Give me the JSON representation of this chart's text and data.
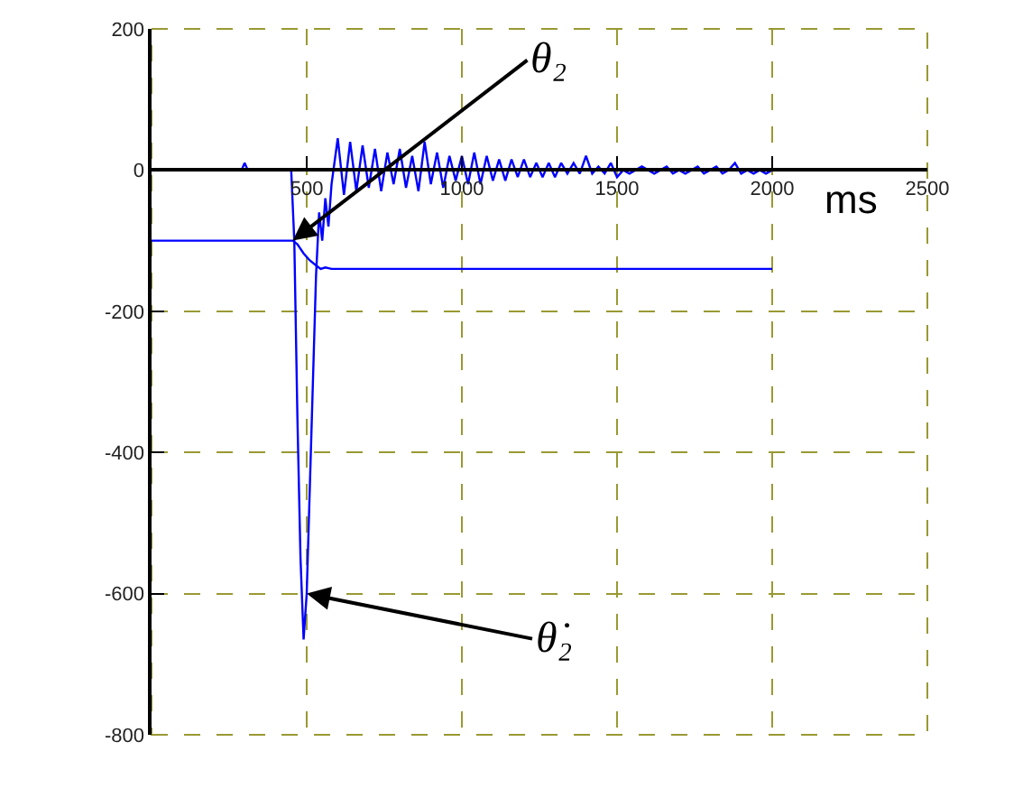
{
  "chart_data": {
    "type": "line",
    "xlabel": "ms",
    "xlim": [
      0,
      2500
    ],
    "xticks": [
      500,
      1000,
      1500,
      2000,
      2500
    ],
    "ylim": [
      -800,
      200
    ],
    "yticks": [
      -800,
      -600,
      -400,
      -200,
      0,
      200
    ],
    "grid": true,
    "marker": "none",
    "line_style": "solid",
    "series": [
      {
        "color": "#0000ff",
        "x": [
          0,
          455,
          470,
          490,
          510,
          530,
          545,
          560,
          580,
          2000
        ],
        "values": [
          -100,
          -100,
          -105,
          -118,
          -128,
          -135,
          -140,
          -138,
          -140,
          -140
        ]
      },
      {
        "color": "#0000ff",
        "x": [
          0,
          290,
          300,
          310,
          450,
          460,
          470,
          480,
          490,
          500,
          510,
          520,
          530,
          540,
          550,
          560,
          570,
          580,
          600,
          620,
          640,
          660,
          680,
          700,
          720,
          740,
          760,
          780,
          800,
          820,
          840,
          860,
          880,
          900,
          920,
          940,
          960,
          980,
          1000,
          1020,
          1040,
          1060,
          1080,
          1100,
          1120,
          1140,
          1160,
          1180,
          1200,
          1220,
          1240,
          1260,
          1280,
          1300,
          1320,
          1340,
          1360,
          1380,
          1400,
          1420,
          1440,
          1460,
          1480,
          1500,
          1520,
          1540,
          1560,
          1580,
          1600,
          1620,
          1640,
          1660,
          1680,
          1700,
          1720,
          1740,
          1760,
          1780,
          1800,
          1820,
          1840,
          1860,
          1880,
          1900,
          1920,
          1940,
          1960,
          1980,
          2000
        ],
        "values": [
          0,
          0,
          10,
          0,
          0,
          -100,
          -350,
          -550,
          -665,
          -600,
          -450,
          -300,
          -150,
          -60,
          -100,
          -40,
          -80,
          -20,
          45,
          -35,
          40,
          -30,
          35,
          -25,
          30,
          -30,
          25,
          -20,
          30,
          -25,
          20,
          -30,
          40,
          -20,
          25,
          -25,
          20,
          -15,
          20,
          -20,
          25,
          -20,
          20,
          -15,
          15,
          -15,
          15,
          -10,
          15,
          -10,
          10,
          -10,
          10,
          -10,
          10,
          -5,
          10,
          -5,
          20,
          -5,
          5,
          -5,
          10,
          -10,
          0,
          -5,
          0,
          5,
          0,
          -5,
          0,
          5,
          -5,
          0,
          -5,
          0,
          5,
          -5,
          0,
          5,
          -5,
          0,
          10,
          -5,
          0,
          -5,
          0,
          -5,
          0
        ]
      }
    ],
    "annotations": [
      {
        "text": "θ₂",
        "x": 455,
        "y": -100
      },
      {
        "text": "θ̇₂",
        "x": 500,
        "y": -600
      }
    ]
  }
}
